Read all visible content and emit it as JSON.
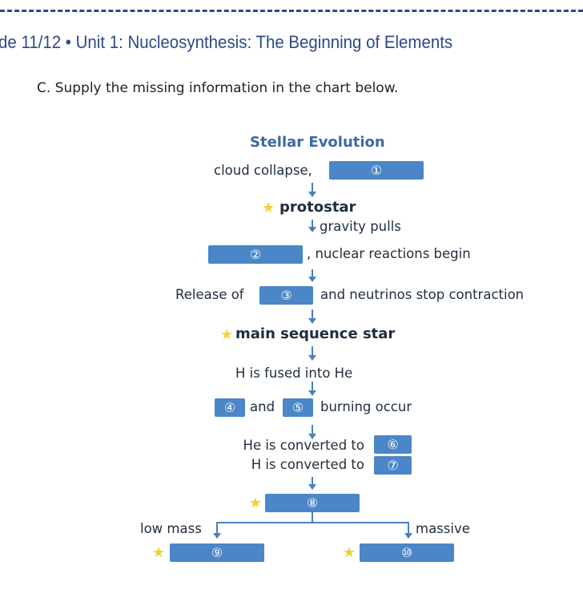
{
  "header": {
    "title": "de 11/12 • Unit 1: Nucleosynthesis: The Beginning of Elements"
  },
  "instruction": "C.   Supply the missing information in the chart below.",
  "chart": {
    "title": "Stellar Evolution",
    "cloud": "cloud collapse,",
    "protostar": "protostar",
    "gravity": "gravity pulls",
    "nuclear": ",  nuclear reactions begin",
    "release": "Release of",
    "neutrinos": "and neutrinos stop contraction",
    "main_seq": "main sequence star",
    "fused": "H is fused into He",
    "and": "and",
    "burning": "burning occur",
    "he_conv": "He is converted to",
    "h_conv": "H is converted to",
    "low_mass": "low mass",
    "massive": "massive",
    "blanks": [
      "①",
      "②",
      "③",
      "④",
      "⑤",
      "⑥",
      "⑦",
      "⑧",
      "⑨",
      "⑩"
    ]
  },
  "colors": {
    "title": "#2b4a8a",
    "box": "#4a86c8",
    "star": "#f0d23a",
    "arrow": "#4a7fbf"
  }
}
